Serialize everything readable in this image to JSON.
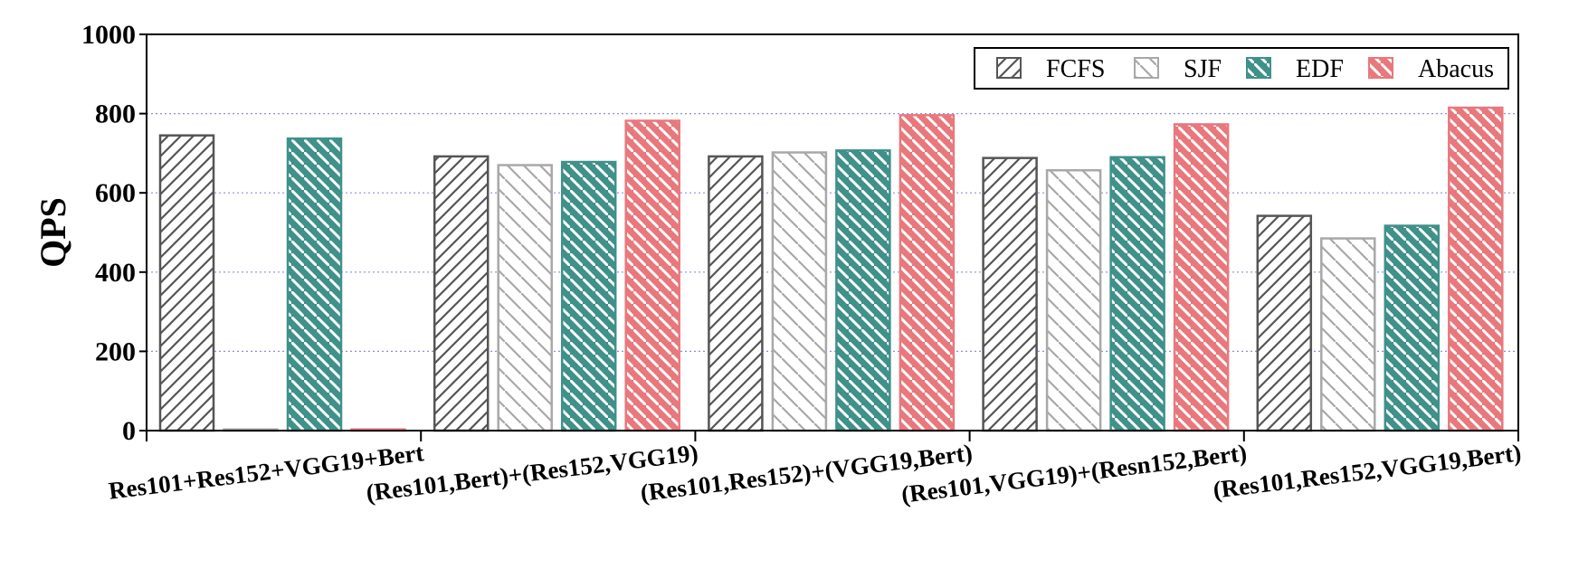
{
  "chart_data": {
    "type": "bar",
    "ylabel": "QPS",
    "xlabel": "",
    "ylim": [
      0,
      1000
    ],
    "yticks": [
      0,
      200,
      400,
      600,
      800,
      1000
    ],
    "grid": "horizontal-dotted",
    "legend": "top-right",
    "categories": [
      "Res101+Res152+VGG19+Bert",
      "(Res101,Bert)+(Res152,VGG19)",
      "(Res101,Res152)+(VGG19,Bert)",
      "(Res101,VGG19)+(Resn152,Bert)",
      "(Res101,Res152,VGG19,Bert)"
    ],
    "series": [
      {
        "name": "FCFS",
        "color": "#555555",
        "fill": "#ffffff",
        "hatch": "forward",
        "values": [
          745,
          692,
          692,
          688,
          542
        ]
      },
      {
        "name": "SJF",
        "color": "#a8a8a8",
        "fill": "#ffffff",
        "hatch": "back",
        "values": [
          3,
          670,
          702,
          657,
          485
        ]
      },
      {
        "name": "EDF",
        "color": "#3f918a",
        "fill": "#3f918a",
        "hatch": "back-white",
        "values": [
          737,
          678,
          707,
          690,
          517
        ]
      },
      {
        "name": "Abacus",
        "color": "#e8787c",
        "fill": "#e8787c",
        "hatch": "back-white",
        "values": [
          3,
          782,
          796,
          773,
          815
        ]
      }
    ]
  }
}
